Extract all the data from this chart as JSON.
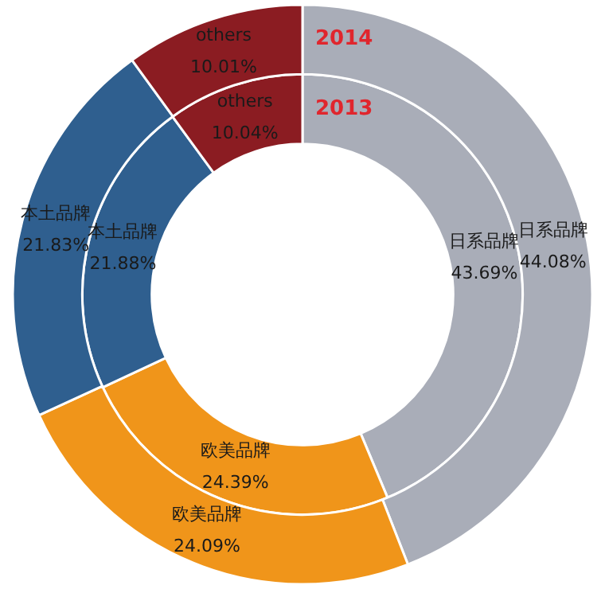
{
  "chart_data": {
    "type": "donut",
    "categories": [
      "日系品牌",
      "欧美品牌",
      "本土品牌",
      "others"
    ],
    "colors": [
      "#a9adb8",
      "#f0951a",
      "#2f5f8f",
      "#8b1c22"
    ],
    "series": [
      {
        "name": "2014",
        "values": [
          44.08,
          24.09,
          21.83,
          10.01
        ],
        "value_labels": [
          "44.08%",
          "24.09%",
          "21.83%",
          "10.01%"
        ]
      },
      {
        "name": "2013",
        "values": [
          43.69,
          24.39,
          21.88,
          10.04
        ],
        "value_labels": [
          "43.69%",
          "24.39%",
          "21.88%",
          "10.04%"
        ]
      }
    ]
  }
}
